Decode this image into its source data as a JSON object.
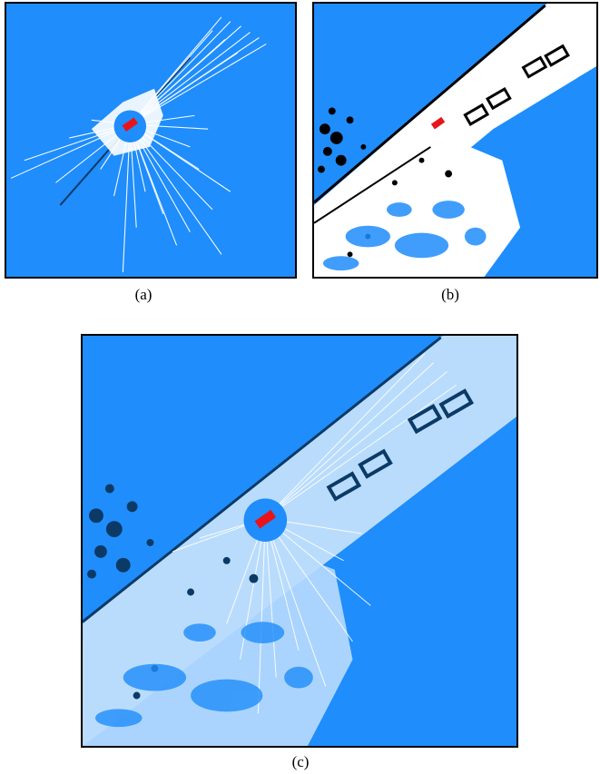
{
  "figure": {
    "panels": [
      {
        "id": "a",
        "caption": "(a)"
      },
      {
        "id": "b",
        "caption": "(b)"
      },
      {
        "id": "c",
        "caption": "(c)"
      }
    ]
  },
  "colors": {
    "background_blue": "#1f8dfb",
    "occupied_dark": "#0b3a66",
    "free_white": "#ffffff",
    "light_blue": "#b9dcfd",
    "vehicle_red": "#e8141a",
    "border": "#000000"
  }
}
